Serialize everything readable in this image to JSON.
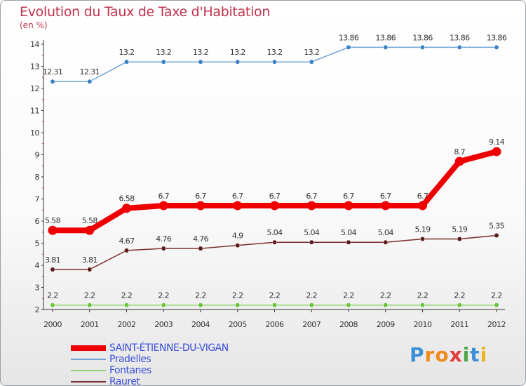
{
  "title": "Evolution du Taux de Taxe d'Habitation",
  "unit": "(en %)",
  "logo": {
    "letters": [
      "P",
      "r",
      "o",
      "x",
      "i",
      "t",
      "i"
    ],
    "colors": [
      "#3a8fd6",
      "#f08a1c",
      "#f08a1c",
      "#e23a3a",
      "#4aa84a",
      "#3a8fd6",
      "#f0b21c"
    ]
  },
  "chart_data": {
    "type": "line",
    "title": "Evolution du Taux de Taxe d'Habitation",
    "ylabel": "(en %)",
    "xlabel": "",
    "x": [
      "2000",
      "2001",
      "2002",
      "2003",
      "2004",
      "2005",
      "2006",
      "2007",
      "2008",
      "2009",
      "2010",
      "2011",
      "2012"
    ],
    "ylim": [
      2,
      14
    ],
    "yticks": [
      2,
      3,
      4,
      5,
      6,
      7,
      8,
      9,
      10,
      11,
      12,
      13,
      14
    ],
    "grid": false,
    "legend_position": "bottom-left",
    "series": [
      {
        "name": "SAINT-ÉTIENNE-DU-VIGAN",
        "color": "#ee0000",
        "emphasis": "thick",
        "values": [
          5.58,
          5.58,
          6.58,
          6.7,
          6.7,
          6.7,
          6.7,
          6.7,
          6.7,
          6.7,
          6.7,
          8.7,
          9.14
        ],
        "labels": [
          "5.58",
          "5.58",
          "6.58",
          "6.7",
          "6.7",
          "6.7",
          "6.7",
          "6.7",
          "6.7",
          "6.7",
          "6.7",
          "8.7",
          "9.14"
        ]
      },
      {
        "name": "Pradelles",
        "color": "#6ea3d8",
        "marker": "#3b82c4",
        "values": [
          12.31,
          12.31,
          13.2,
          13.2,
          13.2,
          13.2,
          13.2,
          13.2,
          13.86,
          13.86,
          13.86,
          13.86,
          13.86
        ],
        "labels": [
          "12.31",
          "12.31",
          "13.2",
          "13.2",
          "13.2",
          "13.2",
          "13.2",
          "13.2",
          "13.86",
          "13.86",
          "13.86",
          "13.86",
          "13.86"
        ]
      },
      {
        "name": "Fontanes",
        "color": "#8fd46a",
        "marker": "#6cc43a",
        "values": [
          2.2,
          2.2,
          2.2,
          2.2,
          2.2,
          2.2,
          2.2,
          2.2,
          2.2,
          2.2,
          2.2,
          2.2,
          2.2
        ],
        "labels": [
          "2.2",
          "2.2",
          "2.2",
          "2.2",
          "2.2",
          "2.2",
          "2.2",
          "2.2",
          "2.2",
          "2.2",
          "2.2",
          "2.2",
          "2.2"
        ]
      },
      {
        "name": "Rauret",
        "color": "#7a2c2c",
        "marker": "#5c1a1a",
        "values": [
          3.81,
          3.81,
          4.67,
          4.76,
          4.76,
          4.9,
          5.04,
          5.04,
          5.04,
          5.04,
          5.19,
          5.19,
          5.35
        ],
        "labels": [
          "3.81",
          "3.81",
          "4.67",
          "4.76",
          "4.76",
          "4.9",
          "5.04",
          "5.04",
          "5.04",
          "5.04",
          "5.19",
          "5.19",
          "5.35"
        ]
      }
    ]
  }
}
